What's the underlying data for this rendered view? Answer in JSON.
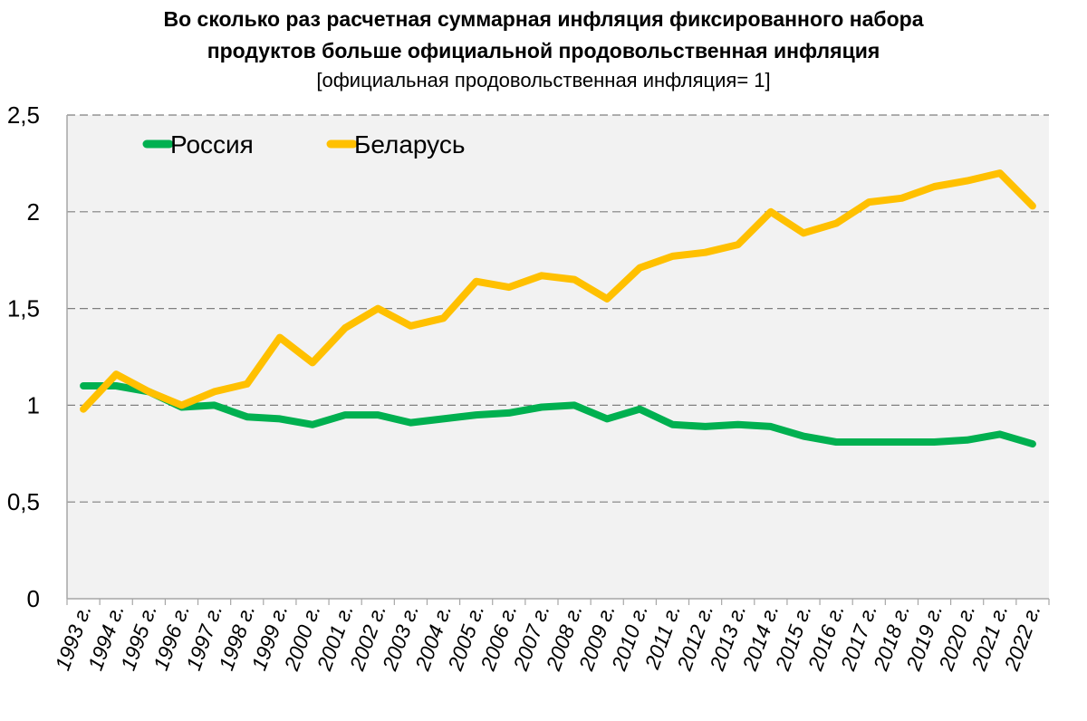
{
  "chart_data": {
    "type": "line",
    "title_line1": "Во сколько  раз расчетная суммарная инфляция фиксированного набора",
    "title_line2": "продуктов больше официальной продовольственная инфляция",
    "subtitle": "[официальная продовольственная инфляция= 1]",
    "xlabel": "",
    "ylabel": "",
    "ylim": [
      0,
      2.5
    ],
    "y_ticks": [
      {
        "value": 0,
        "label": "0"
      },
      {
        "value": 0.5,
        "label": "0,5"
      },
      {
        "value": 1,
        "label": "1"
      },
      {
        "value": 1.5,
        "label": "1,5"
      },
      {
        "value": 2,
        "label": "2"
      },
      {
        "value": 2.5,
        "label": "2,5"
      }
    ],
    "grid": true,
    "legend_position": "top-left",
    "categories": [
      "1993 г.",
      "1994 г.",
      "1995 г.",
      "1996 г.",
      "1997 г.",
      "1998 г.",
      "1999 г.",
      "2000 г.",
      "2001 г.",
      "2002 г.",
      "2003 г.",
      "2004 г.",
      "2005 г.",
      "2006 г.",
      "2007 г.",
      "2008 г.",
      "2009 г.",
      "2010 г.",
      "2011 г.",
      "2012 г.",
      "2013 г.",
      "2014 г.",
      "2015 г.",
      "2016 г.",
      "2017 г.",
      "2018 г.",
      "2019 г.",
      "2020 г.",
      "2021 г.",
      "2022 г."
    ],
    "series": [
      {
        "name": "Россия",
        "color": "#00B050",
        "values": [
          1.1,
          1.1,
          1.07,
          0.99,
          1.0,
          0.94,
          0.93,
          0.9,
          0.95,
          0.95,
          0.91,
          0.93,
          0.95,
          0.96,
          0.99,
          1.0,
          0.93,
          0.98,
          0.9,
          0.89,
          0.9,
          0.89,
          0.84,
          0.81,
          0.81,
          0.81,
          0.81,
          0.82,
          0.85,
          0.8
        ]
      },
      {
        "name": "Беларусь",
        "color": "#FFC000",
        "values": [
          0.98,
          1.16,
          1.07,
          1.0,
          1.07,
          1.11,
          1.35,
          1.22,
          1.4,
          1.5,
          1.41,
          1.45,
          1.64,
          1.61,
          1.67,
          1.65,
          1.55,
          1.71,
          1.77,
          1.79,
          1.83,
          2.0,
          1.89,
          1.94,
          2.05,
          2.07,
          2.13,
          2.16,
          2.2,
          2.03
        ]
      }
    ]
  }
}
